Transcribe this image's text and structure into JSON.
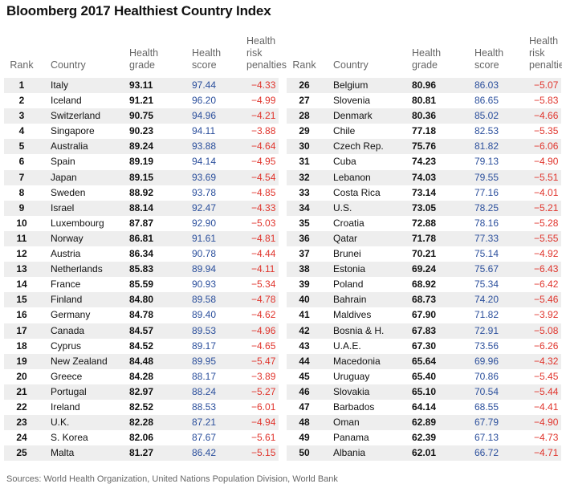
{
  "title": "Bloomberg 2017 Healthiest Country Index",
  "headers": {
    "rank": "Rank",
    "country": "Country",
    "grade_1": "Health",
    "grade_2": "grade",
    "score_1": "Health",
    "score_2": "score",
    "penalty_1": "Health risk",
    "penalty_2": "penalties"
  },
  "colors": {
    "score": "#2b4f9c",
    "penalty": "#e0332b",
    "stripe": "#eeeeee"
  },
  "rows": [
    {
      "rank": "1",
      "country": "Italy",
      "grade": "93.11",
      "score": "97.44",
      "penalty": "−4.33"
    },
    {
      "rank": "2",
      "country": "Iceland",
      "grade": "91.21",
      "score": "96.20",
      "penalty": "−4.99"
    },
    {
      "rank": "3",
      "country": "Switzerland",
      "grade": "90.75",
      "score": "94.96",
      "penalty": "−4.21"
    },
    {
      "rank": "4",
      "country": "Singapore",
      "grade": "90.23",
      "score": "94.11",
      "penalty": "−3.88"
    },
    {
      "rank": "5",
      "country": "Australia",
      "grade": "89.24",
      "score": "93.88",
      "penalty": "−4.64"
    },
    {
      "rank": "6",
      "country": "Spain",
      "grade": "89.19",
      "score": "94.14",
      "penalty": "−4.95"
    },
    {
      "rank": "7",
      "country": "Japan",
      "grade": "89.15",
      "score": "93.69",
      "penalty": "−4.54"
    },
    {
      "rank": "8",
      "country": "Sweden",
      "grade": "88.92",
      "score": "93.78",
      "penalty": "−4.85"
    },
    {
      "rank": "9",
      "country": "Israel",
      "grade": "88.14",
      "score": "92.47",
      "penalty": "−4.33"
    },
    {
      "rank": "10",
      "country": "Luxembourg",
      "grade": "87.87",
      "score": "92.90",
      "penalty": "−5.03"
    },
    {
      "rank": "11",
      "country": "Norway",
      "grade": "86.81",
      "score": "91.61",
      "penalty": "−4.81"
    },
    {
      "rank": "12",
      "country": "Austria",
      "grade": "86.34",
      "score": "90.78",
      "penalty": "−4.44"
    },
    {
      "rank": "13",
      "country": "Netherlands",
      "grade": "85.83",
      "score": "89.94",
      "penalty": "−4.11"
    },
    {
      "rank": "14",
      "country": "France",
      "grade": "85.59",
      "score": "90.93",
      "penalty": "−5.34"
    },
    {
      "rank": "15",
      "country": "Finland",
      "grade": "84.80",
      "score": "89.58",
      "penalty": "−4.78"
    },
    {
      "rank": "16",
      "country": "Germany",
      "grade": "84.78",
      "score": "89.40",
      "penalty": "−4.62"
    },
    {
      "rank": "17",
      "country": "Canada",
      "grade": "84.57",
      "score": "89.53",
      "penalty": "−4.96"
    },
    {
      "rank": "18",
      "country": "Cyprus",
      "grade": "84.52",
      "score": "89.17",
      "penalty": "−4.65"
    },
    {
      "rank": "19",
      "country": "New Zealand",
      "grade": "84.48",
      "score": "89.95",
      "penalty": "−5.47"
    },
    {
      "rank": "20",
      "country": "Greece",
      "grade": "84.28",
      "score": "88.17",
      "penalty": "−3.89"
    },
    {
      "rank": "21",
      "country": "Portugal",
      "grade": "82.97",
      "score": "88.24",
      "penalty": "−5.27"
    },
    {
      "rank": "22",
      "country": "Ireland",
      "grade": "82.52",
      "score": "88.53",
      "penalty": "−6.01"
    },
    {
      "rank": "23",
      "country": "U.K.",
      "grade": "82.28",
      "score": "87.21",
      "penalty": "−4.94"
    },
    {
      "rank": "24",
      "country": "S. Korea",
      "grade": "82.06",
      "score": "87.67",
      "penalty": "−5.61"
    },
    {
      "rank": "25",
      "country": "Malta",
      "grade": "81.27",
      "score": "86.42",
      "penalty": "−5.15"
    },
    {
      "rank": "26",
      "country": "Belgium",
      "grade": "80.96",
      "score": "86.03",
      "penalty": "−5.07"
    },
    {
      "rank": "27",
      "country": "Slovenia",
      "grade": "80.81",
      "score": "86.65",
      "penalty": "−5.83"
    },
    {
      "rank": "28",
      "country": "Denmark",
      "grade": "80.36",
      "score": "85.02",
      "penalty": "−4.66"
    },
    {
      "rank": "29",
      "country": "Chile",
      "grade": "77.18",
      "score": "82.53",
      "penalty": "−5.35"
    },
    {
      "rank": "30",
      "country": "Czech Rep.",
      "grade": "75.76",
      "score": "81.82",
      "penalty": "−6.06"
    },
    {
      "rank": "31",
      "country": "Cuba",
      "grade": "74.23",
      "score": "79.13",
      "penalty": "−4.90"
    },
    {
      "rank": "32",
      "country": "Lebanon",
      "grade": "74.03",
      "score": "79.55",
      "penalty": "−5.51"
    },
    {
      "rank": "33",
      "country": "Costa Rica",
      "grade": "73.14",
      "score": "77.16",
      "penalty": "−4.01"
    },
    {
      "rank": "34",
      "country": "U.S.",
      "grade": "73.05",
      "score": "78.25",
      "penalty": "−5.21"
    },
    {
      "rank": "35",
      "country": "Croatia",
      "grade": "72.88",
      "score": "78.16",
      "penalty": "−5.28"
    },
    {
      "rank": "36",
      "country": "Qatar",
      "grade": "71.78",
      "score": "77.33",
      "penalty": "−5.55"
    },
    {
      "rank": "37",
      "country": "Brunei",
      "grade": "70.21",
      "score": "75.14",
      "penalty": "−4.92"
    },
    {
      "rank": "38",
      "country": "Estonia",
      "grade": "69.24",
      "score": "75.67",
      "penalty": "−6.43"
    },
    {
      "rank": "39",
      "country": "Poland",
      "grade": "68.92",
      "score": "75.34",
      "penalty": "−6.42"
    },
    {
      "rank": "40",
      "country": "Bahrain",
      "grade": "68.73",
      "score": "74.20",
      "penalty": "−5.46"
    },
    {
      "rank": "41",
      "country": "Maldives",
      "grade": "67.90",
      "score": "71.82",
      "penalty": "−3.92"
    },
    {
      "rank": "42",
      "country": "Bosnia & H.",
      "grade": "67.83",
      "score": "72.91",
      "penalty": "−5.08"
    },
    {
      "rank": "43",
      "country": "U.A.E.",
      "grade": "67.30",
      "score": "73.56",
      "penalty": "−6.26"
    },
    {
      "rank": "44",
      "country": "Macedonia",
      "grade": "65.64",
      "score": "69.96",
      "penalty": "−4.32"
    },
    {
      "rank": "45",
      "country": "Uruguay",
      "grade": "65.40",
      "score": "70.86",
      "penalty": "−5.45"
    },
    {
      "rank": "46",
      "country": "Slovakia",
      "grade": "65.10",
      "score": "70.54",
      "penalty": "−5.44"
    },
    {
      "rank": "47",
      "country": "Barbados",
      "grade": "64.14",
      "score": "68.55",
      "penalty": "−4.41"
    },
    {
      "rank": "48",
      "country": "Oman",
      "grade": "62.89",
      "score": "67.79",
      "penalty": "−4.90"
    },
    {
      "rank": "49",
      "country": "Panama",
      "grade": "62.39",
      "score": "67.13",
      "penalty": "−4.73"
    },
    {
      "rank": "50",
      "country": "Albania",
      "grade": "62.01",
      "score": "66.72",
      "penalty": "−4.71"
    }
  ],
  "source": "Sources: World Health Organization, United Nations Population Division, World Bank"
}
